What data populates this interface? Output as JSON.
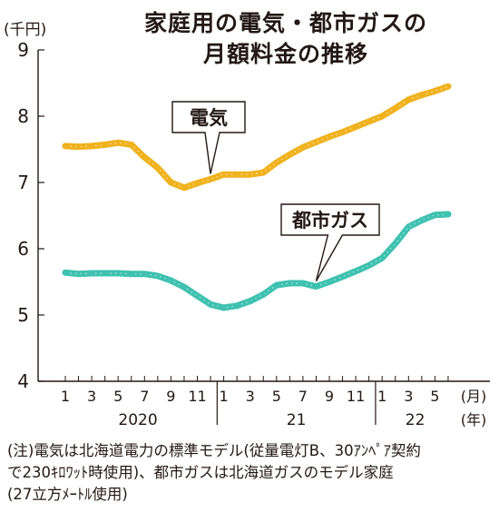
{
  "title": [
    "家庭用の電気・都市ガスの",
    "月額料金の推移"
  ],
  "y_unit": "(千円)",
  "note": [
    "(注)電気は北海道電力の標準モデル(従量電灯B、30ｱﾝﾍﾟｱ契約",
    "で230ｷﾛﾜｯﾄ時使用)、都市ガスは北海道ガスのモデル家庭",
    "(27立方ﾒｰﾄﾙ使用)"
  ],
  "chart_data": {
    "type": "line",
    "title": "家庭用の電気・都市ガスの月額料金の推移",
    "ylabel": "(千円)",
    "ylim": [
      4,
      9
    ],
    "yticks": [
      "4",
      "5",
      "6",
      "7",
      "8",
      "9"
    ],
    "x_unit": [
      "(月)",
      "(年)"
    ],
    "month_tick_labels": [
      "1",
      "3",
      "5",
      "7",
      "9",
      "11",
      "1",
      "3",
      "5",
      "7",
      "9",
      "11",
      "1",
      "3",
      "5"
    ],
    "years": [
      "2020",
      "21",
      "22"
    ],
    "grid": false,
    "x": [
      "2020-01",
      "2020-02",
      "2020-03",
      "2020-04",
      "2020-05",
      "2020-06",
      "2020-07",
      "2020-08",
      "2020-09",
      "2020-10",
      "2020-11",
      "2020-12",
      "2021-01",
      "2021-02",
      "2021-03",
      "2021-04",
      "2021-05",
      "2021-06",
      "2021-07",
      "2021-08",
      "2021-09",
      "2021-10",
      "2021-11",
      "2021-12",
      "2022-01",
      "2022-02",
      "2022-03",
      "2022-04",
      "2022-05",
      "2022-06"
    ],
    "series": [
      {
        "name": "電気",
        "color": "#f0b21d",
        "values": [
          7.55,
          7.54,
          7.55,
          7.57,
          7.6,
          7.57,
          7.38,
          7.22,
          7.0,
          6.92,
          6.99,
          7.05,
          7.12,
          7.12,
          7.12,
          7.15,
          7.3,
          7.42,
          7.53,
          7.61,
          7.69,
          7.76,
          7.84,
          7.92,
          8.0,
          8.12,
          8.25,
          8.32,
          8.38,
          8.45
        ]
      },
      {
        "name": "都市ガス",
        "color": "#3ec1b0",
        "values": [
          5.64,
          5.62,
          5.63,
          5.63,
          5.63,
          5.62,
          5.62,
          5.59,
          5.52,
          5.42,
          5.29,
          5.16,
          5.11,
          5.14,
          5.21,
          5.31,
          5.45,
          5.48,
          5.48,
          5.43,
          5.5,
          5.58,
          5.66,
          5.75,
          5.86,
          6.08,
          6.33,
          6.43,
          6.51,
          6.52
        ]
      }
    ]
  }
}
